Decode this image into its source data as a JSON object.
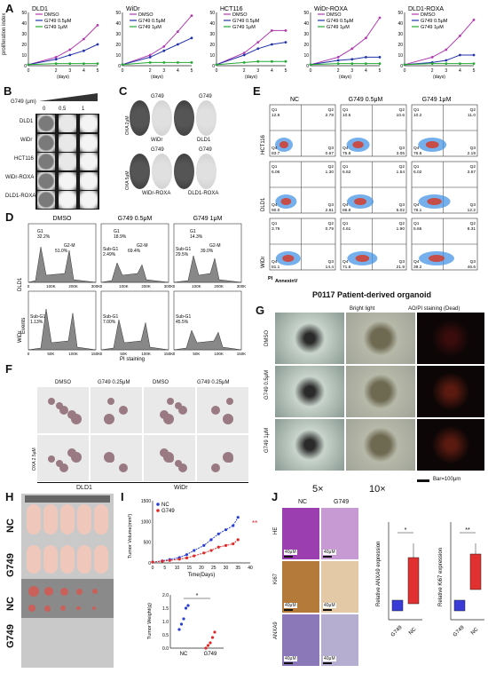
{
  "panels": {
    "A": "A",
    "B": "B",
    "C": "C",
    "D": "D",
    "E": "E",
    "F": "F",
    "G": "G",
    "H": "H",
    "I": "I",
    "J": "J"
  },
  "A": {
    "ylabel": "proliferation index",
    "xlabel": "(days)",
    "xticks": [
      "0",
      "2",
      "3",
      "4",
      "5"
    ],
    "yticks_50": [
      "0",
      "10",
      "20",
      "30",
      "40",
      "50"
    ],
    "charts": [
      {
        "title": "DLD1",
        "legend": [
          "DMSO",
          "G749 0.5μM",
          "G749 1μM"
        ]
      },
      {
        "title": "WiDr",
        "legend": [
          "DMSO",
          "G749 0.5μM",
          "G749 1μM"
        ]
      },
      {
        "title": "HCT116",
        "legend": [
          "DMSO",
          "G749 0.5μM",
          "G749 1μM"
        ]
      },
      {
        "title": "WiDr-ROXA",
        "legend": [
          "DMSO",
          "G749 0.5μM",
          "G749 1μM"
        ]
      },
      {
        "title": "DLD1-ROXA",
        "legend": [
          "DMSO",
          "G749 0.5μM",
          "G749 1μM"
        ]
      }
    ],
    "colors": {
      "dmso": "#b23bb0",
      "g05": "#2233aa",
      "g1": "#22aa33"
    }
  },
  "B": {
    "dose_label": "G749 (μm)",
    "doses": [
      "0",
      "0.5",
      "1"
    ],
    "rows": [
      "DLD1",
      "WiDr",
      "HCT116",
      "WiDr-ROXA",
      "DLD1-ROXA"
    ]
  },
  "C": {
    "top_labels": [
      "G749",
      "G749"
    ],
    "bottom_labels": [
      "G749",
      "G749"
    ],
    "left_top": "OXA 2μM",
    "left_bottom": "OXA 5μM",
    "under_top": [
      "WiDr",
      "DLD1"
    ],
    "under_bottom": [
      "WiDr-ROXA",
      "DLD1-ROXA"
    ]
  },
  "D": {
    "cols": [
      "DMSO",
      "G749 0.5μM",
      "G749 1μM"
    ],
    "rows": [
      "DLD1",
      "WiDr"
    ],
    "ylabel": "Events",
    "xlabel": "PI staining",
    "xticks": [
      "0",
      "100K",
      "200K",
      "300K"
    ],
    "xticks2": [
      "0",
      "50K",
      "100K",
      "150K"
    ],
    "g1": [
      "G1",
      "G1",
      "G1"
    ],
    "g1v": [
      "32.2%",
      "18.9%",
      "14.3%"
    ],
    "g2m": [
      "G2-M",
      "G2-M",
      "G2-M"
    ],
    "g2mv": [
      "51.0%",
      "69.4%",
      "39.0%"
    ],
    "subg1_top": [
      "",
      "Sub-G1",
      "Sub-G1"
    ],
    "subg1_top_v": [
      "",
      "2.49%",
      "29.5%"
    ],
    "subg1_bot": [
      "Sub-G1",
      "Sub-G1",
      "Sub-G1"
    ],
    "subg1_bot_v": [
      "1.13%",
      "7.00%",
      "45.5%"
    ]
  },
  "E": {
    "cols": [
      "NC",
      "G749 0.5μM",
      "G749 1μM"
    ],
    "rows": [
      "HCT116",
      "DLD1",
      "WiDr"
    ],
    "xaxis": "AnnexinV",
    "yaxis": "PI",
    "quads": [
      [
        [
          "Q1",
          "12.9",
          "Q2",
          "2.78",
          "Q4",
          "83.7",
          "Q3",
          "0.67"
        ],
        [
          "Q1",
          "10.5",
          "Q2",
          "10.6",
          "Q4",
          "75.8",
          "Q3",
          "3.05"
        ],
        [
          "Q1",
          "10.2",
          "Q2",
          "11.0",
          "Q4",
          "76.6",
          "Q3",
          "2.19"
        ]
      ],
      [
        [
          "Q1",
          "6.06",
          "Q2",
          "1.30",
          "Q4",
          "90.0",
          "Q3",
          "2.61"
        ],
        [
          "Q1",
          "6.62",
          "Q2",
          "1.54",
          "Q4",
          "86.8",
          "Q3",
          "5.02"
        ],
        [
          "Q1",
          "6.02",
          "Q2",
          "3.67",
          "Q4",
          "78.1",
          "Q3",
          "12.2"
        ]
      ],
      [
        [
          "Q1",
          "3.79",
          "Q2",
          "0.79",
          "Q4",
          "81.1",
          "Q3",
          "14.4"
        ],
        [
          "Q1",
          "4.61",
          "Q2",
          "1.90",
          "Q4",
          "71.6",
          "Q3",
          "21.9"
        ],
        [
          "Q1",
          "5.65",
          "Q2",
          "8.31",
          "Q4",
          "39.2",
          "Q3",
          "46.6"
        ]
      ]
    ]
  },
  "F": {
    "cols": [
      "DMSO",
      "G749 0.25μM",
      "DMSO",
      "G749 0.25μM"
    ],
    "left": "OXA 2.5μM",
    "bottom": [
      "DLD1",
      "WiDr"
    ]
  },
  "G": {
    "title": "P0117 Patient-derived organoid",
    "cols": [
      "Bright light",
      "AO/PI staining (Dead)"
    ],
    "rows": [
      "DMSO",
      "G749 0.5μM",
      "G749 1μM"
    ],
    "bar": "Bar=100μm"
  },
  "H": {
    "labels": [
      "NC",
      "G749",
      "NC",
      "G749"
    ]
  },
  "I": {
    "legend": [
      "NC",
      "G749"
    ],
    "ylabel": "Tumor Volume(mm³)",
    "xlabel": "Time(Days)",
    "xticks": [
      "0",
      "5",
      "10",
      "15",
      "20",
      "25",
      "30",
      "35",
      "40"
    ],
    "yticks": [
      "0",
      "500",
      "1000",
      "1500"
    ],
    "sig": "**",
    "colors": {
      "nc": "#2a3fd6",
      "g749": "#e02a2a"
    },
    "box_ylabel": "Tumor Weight(g)",
    "box_xticks": [
      "NC",
      "G749"
    ],
    "box_yticks": [
      "0.0",
      "0.5",
      "1.0",
      "1.5",
      "2.0"
    ],
    "box_sig": "*"
  },
  "J": {
    "mag": [
      "5×",
      "10×"
    ],
    "cols": [
      "NC",
      "G749"
    ],
    "rows": [
      "HE",
      "Ki67",
      "ANXA9"
    ],
    "scale": "40μM",
    "box1": {
      "ylabel": "Relative ANXA9 expression",
      "xticks": [
        "G749",
        "NC"
      ],
      "sig": "*"
    },
    "box2": {
      "ylabel": "Relative Ki67 expression",
      "xticks": [
        "G749",
        "NC"
      ],
      "sig": "**"
    }
  },
  "chart_data": [
    {
      "type": "line",
      "title": "DLD1",
      "x": [
        0,
        2,
        3,
        4,
        5
      ],
      "ylim": [
        0,
        50
      ],
      "series": [
        {
          "name": "DMSO",
          "values": [
            1,
            8,
            15,
            25,
            38
          ]
        },
        {
          "name": "G749 0.5μM",
          "values": [
            1,
            6,
            10,
            14,
            20
          ]
        },
        {
          "name": "G749 1μM",
          "values": [
            1,
            2,
            2,
            2,
            2
          ]
        }
      ]
    },
    {
      "type": "line",
      "title": "WiDr",
      "x": [
        0,
        2,
        3,
        4,
        5
      ],
      "ylim": [
        0,
        50
      ],
      "series": [
        {
          "name": "DMSO",
          "values": [
            1,
            10,
            18,
            32,
            47
          ]
        },
        {
          "name": "G749 0.5μM",
          "values": [
            1,
            8,
            14,
            20,
            26
          ]
        },
        {
          "name": "G749 1μM",
          "values": [
            1,
            3,
            3,
            3,
            3
          ]
        }
      ]
    },
    {
      "type": "line",
      "title": "HCT116",
      "x": [
        0,
        2,
        3,
        4,
        5
      ],
      "ylim": [
        0,
        50
      ],
      "series": [
        {
          "name": "DMSO",
          "values": [
            1,
            12,
            22,
            33,
            33
          ]
        },
        {
          "name": "G749 0.5μM",
          "values": [
            1,
            10,
            16,
            20,
            22
          ]
        },
        {
          "name": "G749 1μM",
          "values": [
            1,
            3,
            4,
            4,
            4
          ]
        }
      ]
    },
    {
      "type": "line",
      "title": "WiDr-ROXA",
      "x": [
        0,
        2,
        3,
        4,
        5
      ],
      "ylim": [
        0,
        50
      ],
      "series": [
        {
          "name": "DMSO",
          "values": [
            1,
            8,
            16,
            26,
            45
          ]
        },
        {
          "name": "G749 0.5μM",
          "values": [
            1,
            5,
            6,
            8,
            8
          ]
        },
        {
          "name": "G749 1μM",
          "values": [
            1,
            2,
            2,
            2,
            2
          ]
        }
      ]
    },
    {
      "type": "line",
      "title": "DLD1-ROXA",
      "x": [
        0,
        2,
        3,
        4,
        5
      ],
      "ylim": [
        0,
        50
      ],
      "series": [
        {
          "name": "DMSO",
          "values": [
            1,
            8,
            15,
            28,
            43
          ]
        },
        {
          "name": "G749 0.5μM",
          "values": [
            1,
            3,
            5,
            10,
            10
          ]
        },
        {
          "name": "G749 1μM",
          "values": [
            1,
            2,
            2,
            2,
            2
          ]
        }
      ]
    },
    {
      "type": "line",
      "title": "",
      "x": [
        0,
        4,
        7,
        11,
        14,
        17,
        21,
        24,
        27,
        30,
        33,
        35
      ],
      "ylim": [
        0,
        1500
      ],
      "series": [
        {
          "name": "NC",
          "values": [
            20,
            50,
            80,
            130,
            200,
            300,
            420,
            560,
            700,
            800,
            900,
            1100
          ]
        },
        {
          "name": "G749",
          "values": [
            20,
            40,
            60,
            90,
            120,
            170,
            240,
            300,
            380,
            420,
            460,
            560
          ]
        }
      ]
    }
  ]
}
